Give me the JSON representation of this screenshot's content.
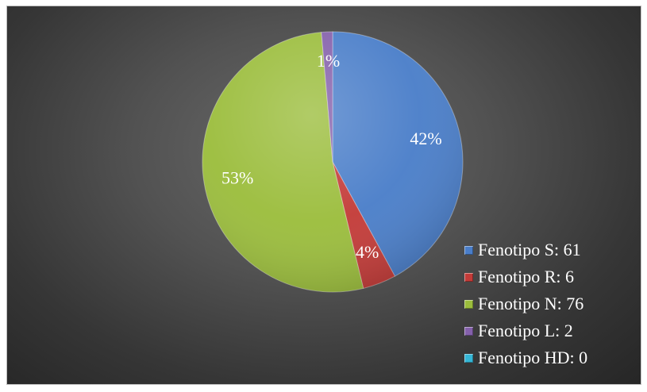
{
  "chart_data": {
    "type": "pie",
    "start_angle_deg": 0,
    "direction": "clockwise",
    "legend_position": "right-bottom",
    "slices": [
      {
        "label": "Fenotipo S: 61",
        "value": 61,
        "percent_label": "42%",
        "color": "#4a7ec9"
      },
      {
        "label": "Fenotipo R: 6",
        "value": 6,
        "percent_label": "4%",
        "color": "#c33b38"
      },
      {
        "label": "Fenotipo N: 76",
        "value": 76,
        "percent_label": "53%",
        "color": "#9bbd3c"
      },
      {
        "label": "Fenotipo L: 2",
        "value": 2,
        "percent_label": "1%",
        "color": "#8460ab"
      },
      {
        "label": "Fenotipo HD: 0",
        "value": 0,
        "percent_label": "",
        "color": "#35b6d6"
      }
    ]
  }
}
